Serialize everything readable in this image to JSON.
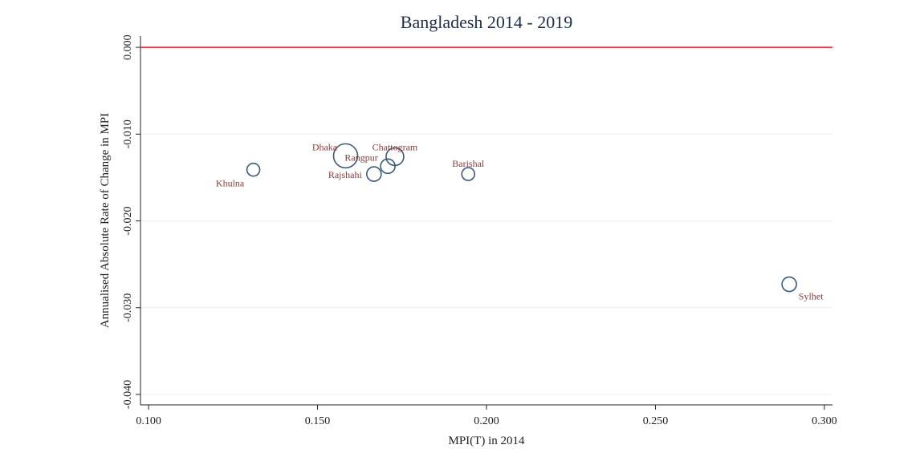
{
  "chart_data": {
    "type": "scatter",
    "title": "Bangladesh 2014 - 2019",
    "x_label": "MPI(T) in 2014",
    "y_label": "Annualised Absolute Rate of Change in MPI",
    "labels": [
      "Khulna",
      "Dhaka",
      "Chattogram",
      "Rangpur",
      "Rajshahi",
      "Barishal",
      "Sylhet"
    ],
    "x": [
      0.131,
      0.1583,
      0.1729,
      0.1708,
      0.1667,
      0.1946,
      0.2896
    ],
    "values": [
      -0.0141,
      -0.0125,
      -0.0126,
      -0.0137,
      -0.0146,
      -0.0146,
      -0.0273
    ],
    "sizes": [
      64,
      225,
      121,
      81,
      81,
      64,
      81
    ],
    "color": "#3b5a78",
    "label_color": "#8b3a3a",
    "xlim": [
      0.0976,
      0.3024
    ],
    "ylim": [
      -0.0412,
      0.0013
    ],
    "xticks": [
      {
        "value": 0.1,
        "label": "0.100"
      },
      {
        "value": 0.15,
        "label": "0.150"
      },
      {
        "value": 0.2,
        "label": "0.200"
      },
      {
        "value": 0.25,
        "label": "0.250"
      },
      {
        "value": 0.3,
        "label": "0.300"
      }
    ],
    "yticks": [
      {
        "value": 0,
        "label": "0.000"
      },
      {
        "value": -0.01,
        "label": "-0.010"
      },
      {
        "value": -0.02,
        "label": "-0.020"
      },
      {
        "value": -0.03,
        "label": "-0.030"
      },
      {
        "value": -0.04,
        "label": "-0.040"
      }
    ],
    "reference_line": 0,
    "reference_color": "#d9414f",
    "grid": true
  }
}
